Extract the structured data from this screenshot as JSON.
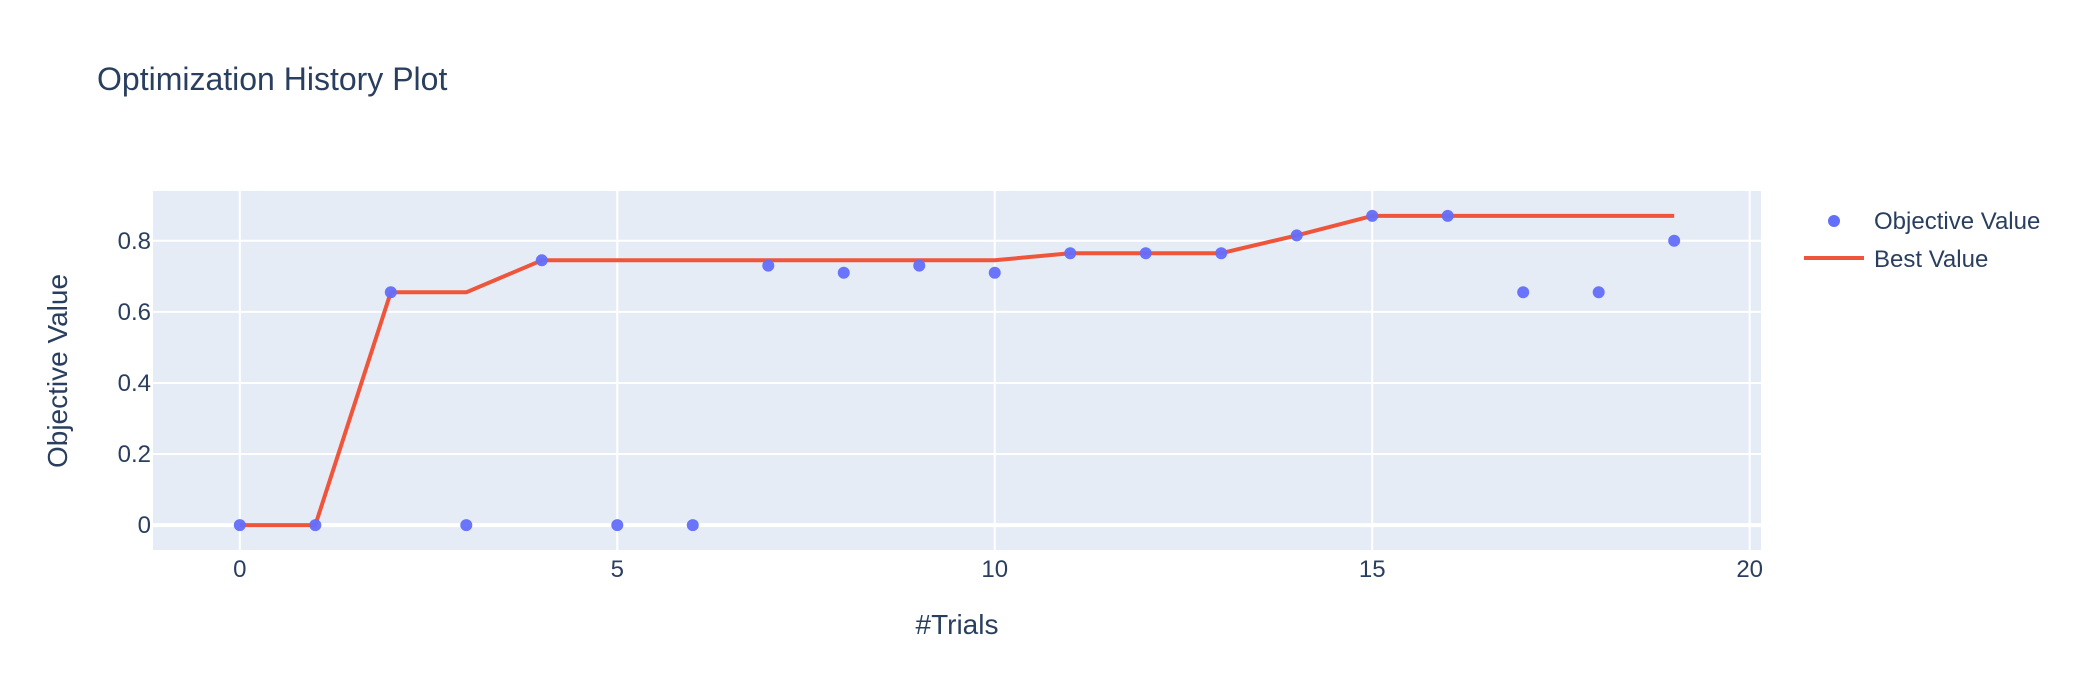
{
  "chart_data": {
    "type": "scatter",
    "title": "Optimization History Plot",
    "xlabel": "#Trials",
    "ylabel": "Objective Value",
    "xlim": [
      -1.15,
      20.15
    ],
    "ylim": [
      -0.07,
      0.94
    ],
    "x_ticks": [
      0,
      5,
      10,
      15,
      20
    ],
    "y_ticks": [
      0,
      0.2,
      0.4,
      0.6,
      0.8
    ],
    "grid": true,
    "legend_position": "top-right",
    "series": [
      {
        "name": "Objective Value",
        "mode": "markers",
        "color": "#636efa",
        "x": [
          0,
          1,
          2,
          3,
          4,
          5,
          6,
          7,
          8,
          9,
          10,
          11,
          12,
          13,
          14,
          15,
          16,
          17,
          18,
          19
        ],
        "y": [
          0,
          0,
          0.655,
          0,
          0.745,
          0,
          0,
          0.73,
          0.71,
          0.73,
          0.71,
          0.765,
          0.765,
          0.765,
          0.815,
          0.87,
          0.87,
          0.655,
          0.655,
          0.8
        ]
      },
      {
        "name": "Best Value",
        "mode": "lines",
        "color": "#ef553b",
        "x": [
          0,
          1,
          2,
          3,
          4,
          5,
          6,
          7,
          8,
          9,
          10,
          11,
          12,
          13,
          14,
          15,
          16,
          17,
          18,
          19
        ],
        "y": [
          0,
          0,
          0.655,
          0.655,
          0.745,
          0.745,
          0.745,
          0.745,
          0.745,
          0.745,
          0.745,
          0.765,
          0.765,
          0.765,
          0.815,
          0.87,
          0.87,
          0.87,
          0.87,
          0.87
        ]
      }
    ]
  },
  "colors": {
    "plot_background": "#e5ecf6",
    "text": "#2a3f5f"
  }
}
